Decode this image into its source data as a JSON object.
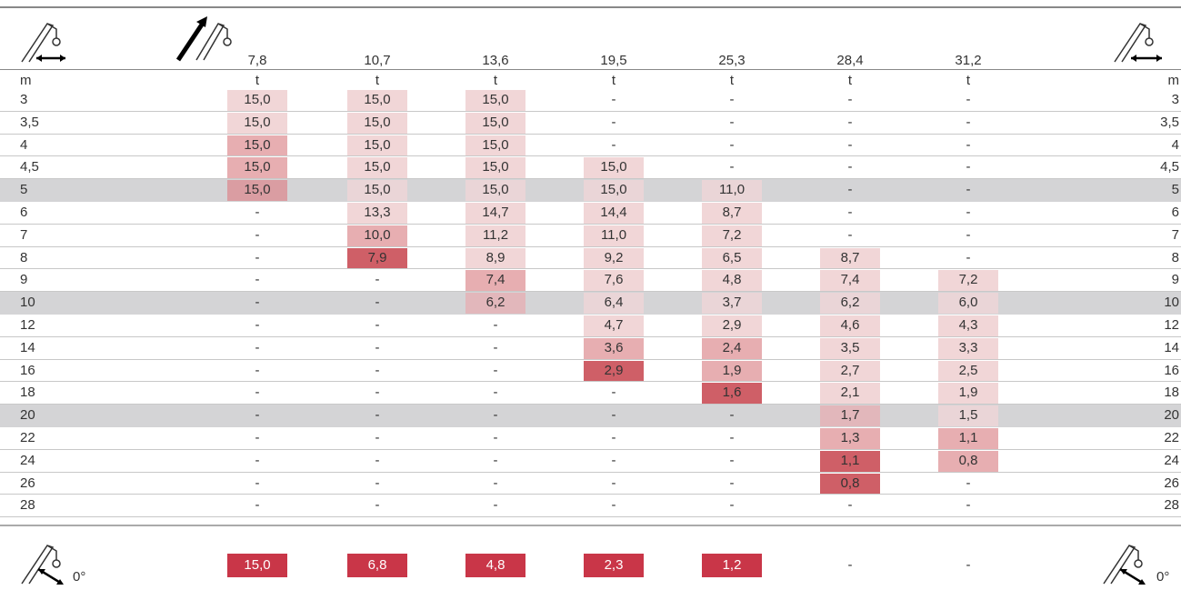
{
  "table": {
    "columns": [
      "7,8",
      "10,7",
      "13,6",
      "19,5",
      "25,3",
      "28,4",
      "31,2"
    ],
    "units": {
      "left": "m",
      "cols": [
        "t",
        "t",
        "t",
        "t",
        "t",
        "t",
        "t"
      ],
      "right": "m"
    },
    "rows": [
      {
        "label": "3",
        "values": [
          "15,0",
          "15,0",
          "15,0",
          "-",
          "-",
          "-",
          "-"
        ]
      },
      {
        "label": "3,5",
        "values": [
          "15,0",
          "15,0",
          "15,0",
          "-",
          "-",
          "-",
          "-"
        ]
      },
      {
        "label": "4",
        "values": [
          "15,0",
          "15,0",
          "15,0",
          "-",
          "-",
          "-",
          "-"
        ]
      },
      {
        "label": "4,5",
        "values": [
          "15,0",
          "15,0",
          "15,0",
          "15,0",
          "-",
          "-",
          "-"
        ]
      },
      {
        "label": "5",
        "values": [
          "15,0",
          "15,0",
          "15,0",
          "15,0",
          "11,0",
          "-",
          "-"
        ]
      },
      {
        "label": "6",
        "values": [
          "-",
          "13,3",
          "14,7",
          "14,4",
          "8,7",
          "-",
          "-"
        ]
      },
      {
        "label": "7",
        "values": [
          "-",
          "10,0",
          "11,2",
          "11,0",
          "7,2",
          "-",
          "-"
        ]
      },
      {
        "label": "8",
        "values": [
          "-",
          "7,9",
          "8,9",
          "9,2",
          "6,5",
          "8,7",
          "-"
        ]
      },
      {
        "label": "9",
        "values": [
          "-",
          "-",
          "7,4",
          "7,6",
          "4,8",
          "7,4",
          "7,2"
        ]
      },
      {
        "label": "10",
        "values": [
          "-",
          "-",
          "6,2",
          "6,4",
          "3,7",
          "6,2",
          "6,0"
        ]
      },
      {
        "label": "12",
        "values": [
          "-",
          "-",
          "-",
          "4,7",
          "2,9",
          "4,6",
          "4,3"
        ]
      },
      {
        "label": "14",
        "values": [
          "-",
          "-",
          "-",
          "3,6",
          "2,4",
          "3,5",
          "3,3"
        ]
      },
      {
        "label": "16",
        "values": [
          "-",
          "-",
          "-",
          "2,9",
          "1,9",
          "2,7",
          "2,5"
        ]
      },
      {
        "label": "18",
        "values": [
          "-",
          "-",
          "-",
          "-",
          "1,6",
          "2,1",
          "1,9"
        ]
      },
      {
        "label": "20",
        "values": [
          "-",
          "-",
          "-",
          "-",
          "-",
          "1,7",
          "1,5"
        ]
      },
      {
        "label": "22",
        "values": [
          "-",
          "-",
          "-",
          "-",
          "-",
          "1,3",
          "1,1"
        ]
      },
      {
        "label": "24",
        "values": [
          "-",
          "-",
          "-",
          "-",
          "-",
          "1,1",
          "0,8"
        ]
      },
      {
        "label": "26",
        "values": [
          "-",
          "-",
          "-",
          "-",
          "-",
          "0,8",
          "-"
        ]
      },
      {
        "label": "28",
        "values": [
          "-",
          "-",
          "-",
          "-",
          "-",
          "-",
          "-"
        ]
      }
    ],
    "footer": {
      "angle_left": "0°",
      "values": [
        "15,0",
        "6,8",
        "4,8",
        "2,3",
        "1,2",
        "-",
        "-"
      ],
      "angle_right": "0°"
    }
  }
}
